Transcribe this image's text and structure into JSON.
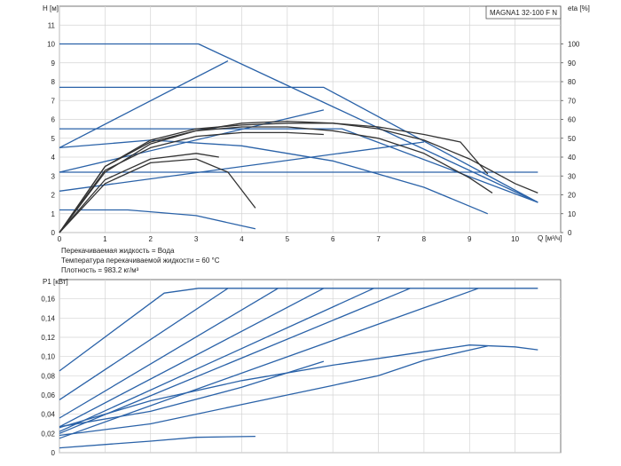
{
  "chart_data": [
    {
      "type": "line",
      "title": "MAGNA1 32-100 F N",
      "xlabel": "Q [м³/ч]",
      "ylabel": "H [м]",
      "y2label": "eta [%]",
      "xlim": [
        0,
        11
      ],
      "ylim": [
        0,
        12
      ],
      "y2lim": [
        0,
        120
      ],
      "xticks": [
        "0",
        "1",
        "2",
        "3",
        "4",
        "5",
        "6",
        "7",
        "8",
        "9",
        "10"
      ],
      "yticks": [
        "0",
        "1",
        "2",
        "3",
        "4",
        "5",
        "6",
        "7",
        "8",
        "9",
        "10",
        "11"
      ],
      "y2ticks": [
        "0",
        "10",
        "20",
        "30",
        "40",
        "50",
        "60",
        "70",
        "80",
        "90",
        "100"
      ],
      "grid": true,
      "annotations": [
        "Перекачиваемая жидкость = Вода",
        "Температура перекачиваемой жидкости = 60 °C",
        "Плотность = 983.2 кг/м³"
      ],
      "series": [
        {
          "color": "#2a62a8",
          "points": [
            [
              0,
              10
            ],
            [
              3.05,
              10
            ],
            [
              10.5,
              1.6
            ]
          ]
        },
        {
          "color": "#2a62a8",
          "points": [
            [
              0,
              7.7
            ],
            [
              5.8,
              7.7
            ],
            [
              10.5,
              1.6
            ]
          ]
        },
        {
          "color": "#2a62a8",
          "points": [
            [
              0,
              5.5
            ],
            [
              6.2,
              5.5
            ],
            [
              10.5,
              1.6
            ]
          ]
        },
        {
          "color": "#2a62a8",
          "points": [
            [
              0,
              4.5
            ],
            [
              3.7,
              9.1
            ]
          ]
        },
        {
          "color": "#2a62a8",
          "points": [
            [
              0,
              3.2
            ],
            [
              5.8,
              6.5
            ]
          ]
        },
        {
          "color": "#2a62a8",
          "points": [
            [
              0,
              2.2
            ],
            [
              8,
              4.8
            ]
          ]
        },
        {
          "color": "#2a62a8",
          "points": [
            [
              0,
              3.2
            ],
            [
              10.5,
              3.2
            ]
          ]
        },
        {
          "color": "#2a62a8",
          "points": [
            [
              0,
              4.5
            ],
            [
              2,
              4.9
            ],
            [
              4,
              4.6
            ],
            [
              6,
              3.8
            ],
            [
              8,
              2.4
            ],
            [
              9.4,
              1.0
            ]
          ]
        },
        {
          "color": "#2a62a8",
          "points": [
            [
              0,
              1.2
            ],
            [
              1.5,
              1.2
            ],
            [
              3,
              0.9
            ],
            [
              4.3,
              0.2
            ]
          ]
        },
        {
          "color": "#333333",
          "points": [
            [
              0,
              0
            ],
            [
              1,
              3.2
            ],
            [
              2,
              4.7
            ],
            [
              3,
              5.4
            ],
            [
              4,
              5.8
            ],
            [
              5,
              5.9
            ],
            [
              6,
              5.8
            ],
            [
              7,
              5.5
            ],
            [
              8,
              4.9
            ],
            [
              9,
              3.9
            ],
            [
              10,
              2.6
            ],
            [
              10.5,
              2.1
            ]
          ]
        },
        {
          "color": "#333333",
          "points": [
            [
              0,
              0
            ],
            [
              1,
              3.5
            ],
            [
              2,
              4.9
            ],
            [
              3,
              5.5
            ],
            [
              4,
              5.7
            ],
            [
              5,
              5.8
            ],
            [
              6,
              5.8
            ],
            [
              7,
              5.6
            ],
            [
              8,
              5.2
            ],
            [
              8.8,
              4.8
            ],
            [
              9.4,
              3.1
            ]
          ]
        },
        {
          "color": "#333333",
          "points": [
            [
              0,
              0
            ],
            [
              1,
              3.5
            ],
            [
              2,
              4.8
            ],
            [
              3,
              5.4
            ],
            [
              4,
              5.6
            ],
            [
              5,
              5.6
            ],
            [
              6,
              5.4
            ],
            [
              7,
              5.0
            ],
            [
              8,
              4.2
            ],
            [
              9,
              2.9
            ],
            [
              9.5,
              2.1
            ]
          ]
        },
        {
          "color": "#333333",
          "points": [
            [
              0,
              0
            ],
            [
              1,
              3.3
            ],
            [
              2,
              4.5
            ],
            [
              3,
              5.1
            ],
            [
              4,
              5.3
            ],
            [
              5,
              5.3
            ],
            [
              5.8,
              5.2
            ]
          ]
        },
        {
          "color": "#333333",
          "points": [
            [
              0,
              0
            ],
            [
              1,
              2.8
            ],
            [
              2,
              3.9
            ],
            [
              3,
              4.2
            ],
            [
              3.5,
              4.0
            ]
          ]
        },
        {
          "color": "#333333",
          "points": [
            [
              0,
              0
            ],
            [
              1,
              2.6
            ],
            [
              2,
              3.7
            ],
            [
              3,
              3.9
            ],
            [
              3.7,
              3.2
            ],
            [
              4.3,
              1.3
            ]
          ]
        }
      ]
    },
    {
      "type": "line",
      "xlabel": "",
      "ylabel": "P1 [кВт]",
      "xlim": [
        0,
        11
      ],
      "ylim": [
        0,
        0.18
      ],
      "yticks": [
        "0",
        "0,02",
        "0,04",
        "0,06",
        "0,08",
        "0,10",
        "0,12",
        "0,14",
        "0,16"
      ],
      "grid": true,
      "series": [
        {
          "color": "#2a62a8",
          "points": [
            [
              0,
              0.085
            ],
            [
              2.3,
              0.166
            ],
            [
              3.05,
              0.171
            ],
            [
              10.5,
              0.171
            ]
          ]
        },
        {
          "color": "#2a62a8",
          "points": [
            [
              0,
              0.055
            ],
            [
              3.7,
              0.171
            ]
          ]
        },
        {
          "color": "#2a62a8",
          "points": [
            [
              0,
              0.036
            ],
            [
              4.8,
              0.171
            ]
          ]
        },
        {
          "color": "#2a62a8",
          "points": [
            [
              0,
              0.027
            ],
            [
              5.8,
              0.171
            ]
          ]
        },
        {
          "color": "#2a62a8",
          "points": [
            [
              0,
              0.022
            ],
            [
              6.9,
              0.171
            ]
          ]
        },
        {
          "color": "#2a62a8",
          "points": [
            [
              0,
              0.02
            ],
            [
              7.7,
              0.171
            ]
          ]
        },
        {
          "color": "#2a62a8",
          "points": [
            [
              0,
              0.015
            ],
            [
              9.2,
              0.171
            ]
          ]
        },
        {
          "color": "#2a62a8",
          "points": [
            [
              0,
              0.018
            ],
            [
              2,
              0.03
            ],
            [
              4,
              0.05
            ],
            [
              6,
              0.07
            ],
            [
              7,
              0.08
            ],
            [
              8,
              0.096
            ],
            [
              9.4,
              0.111
            ]
          ]
        },
        {
          "color": "#2a62a8",
          "points": [
            [
              0,
              0.027
            ],
            [
              2,
              0.043
            ],
            [
              4,
              0.068
            ],
            [
              5.8,
              0.095
            ]
          ]
        },
        {
          "color": "#2a62a8",
          "points": [
            [
              0,
              0.026
            ],
            [
              2,
              0.054
            ],
            [
              4,
              0.075
            ],
            [
              6,
              0.091
            ],
            [
              8,
              0.105
            ],
            [
              9,
              0.112
            ],
            [
              10,
              0.11
            ],
            [
              10.5,
              0.107
            ]
          ]
        },
        {
          "color": "#2a62a8",
          "points": [
            [
              0,
              0.005
            ],
            [
              2,
              0.012
            ],
            [
              3,
              0.016
            ],
            [
              4.3,
              0.017
            ]
          ]
        }
      ]
    }
  ]
}
